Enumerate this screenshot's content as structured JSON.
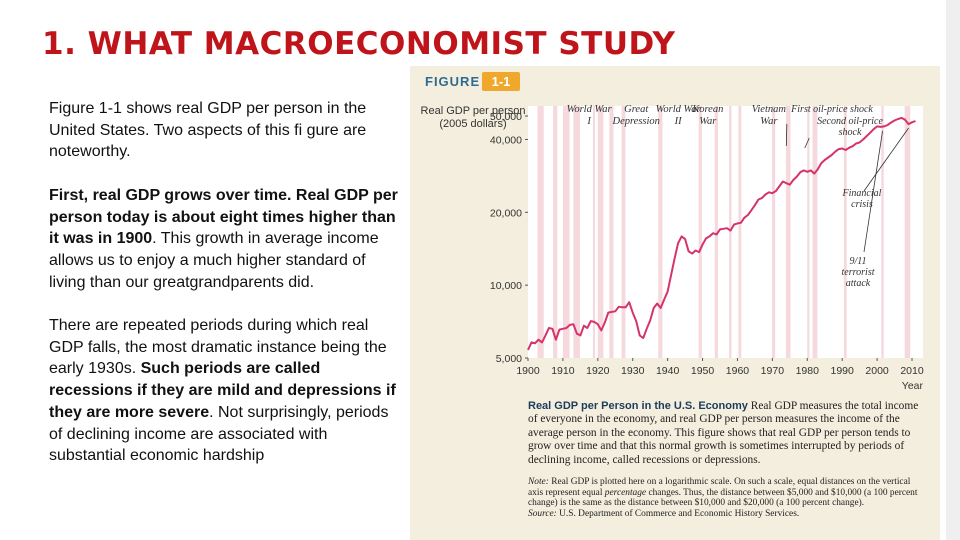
{
  "slide": {
    "title": "1. WHAT MACROECONOMIST STUDY",
    "paragraph1": "Figure 1-1 shows real GDP per person in the United States. Two aspects of this fi gure are noteworthy.",
    "paragraph2_bold": "First, real GDP grows over time. Real GDP per person today is about eight times higher than it was in 1900",
    "paragraph2_rest": ". This growth in average income allows us to enjoy a much higher standard of living than our greatgrandparents did.",
    "paragraph3_lead": "There are repeated periods during which real GDP falls, the most dramatic instance being the early 1930s. ",
    "paragraph3_bold": "Such periods are called recessions if they are mild and depressions if they are more severe",
    "paragraph3_rest": ". Not surprisingly, periods of declining income are associated with substantial economic hardship"
  },
  "figure": {
    "label": "FIGURE",
    "number": "1-1",
    "caption_title": "Real GDP per Person in the U.S. Economy",
    "caption_text": "Real GDP measures the total income of everyone in the economy, and real GDP per person measures the income of the average person in the economy. This figure shows that real GDP per person tends to grow over time and that this normal growth is sometimes interrupted by periods of declining income, called recessions or depressions.",
    "note_label": "Note:",
    "note_text": "Real GDP is plotted here on a logarithmic scale. On such a scale, equal distances on the vertical axis represent equal",
    "note_italic": "percentage",
    "note_text2": "changes. Thus, the distance between $5,000 and $10,000 (a 100 percent change) is the same as the distance between $10,000 and $20,000 (a 100 percent change).",
    "source_label": "Source:",
    "source_text": "U.S. Department of Commerce and Economic History Services."
  },
  "chart_data": {
    "type": "line",
    "ylabel": "Real GDP per person (2005 dollars)",
    "xlabel": "Year",
    "y_scale": "log",
    "ylim": [
      5000,
      55000
    ],
    "xlim": [
      1900,
      2012
    ],
    "y_ticks": [
      5000,
      10000,
      20000,
      40000,
      50000
    ],
    "y_tick_labels": [
      "5,000",
      "10,000",
      "20,000",
      "40,000",
      "50,000"
    ],
    "x_ticks": [
      1900,
      1910,
      1920,
      1930,
      1940,
      1950,
      1960,
      1970,
      1980,
      1990,
      2000,
      2010
    ],
    "x_tick_labels": [
      "1900",
      "1910",
      "1920",
      "1930",
      "1940",
      "1950",
      "1960",
      "1970",
      "1980",
      "1990",
      "2000",
      "2010"
    ],
    "grid": false,
    "line_color": "#d6336c",
    "band_color": "#f5d9dc",
    "series": [
      {
        "x": [
          1900,
          1901,
          1902,
          1903,
          1904,
          1905,
          1906,
          1907,
          1908,
          1909,
          1910,
          1911,
          1912,
          1913,
          1914,
          1915,
          1916,
          1917,
          1918,
          1919,
          1920,
          1921,
          1922,
          1923,
          1924,
          1925,
          1926,
          1927,
          1928,
          1929,
          1930,
          1931,
          1932,
          1933,
          1934,
          1935,
          1936,
          1937,
          1938,
          1939,
          1940,
          1941,
          1942,
          1943,
          1944,
          1945,
          1946,
          1947,
          1948,
          1949,
          1950,
          1951,
          1952,
          1953,
          1954,
          1955,
          1956,
          1957,
          1958,
          1959,
          1960,
          1961,
          1962,
          1963,
          1964,
          1965,
          1966,
          1967,
          1968,
          1969,
          1970,
          1971,
          1972,
          1973,
          1974,
          1975,
          1976,
          1977,
          1978,
          1979,
          1980,
          1981,
          1982,
          1983,
          1984,
          1985,
          1986,
          1987,
          1988,
          1989,
          1990,
          1991,
          1992,
          1993,
          1994,
          1995,
          1996,
          1997,
          1998,
          1999,
          2000,
          2001,
          2002,
          2003,
          2004,
          2005,
          2006,
          2007,
          2008,
          2009,
          2010,
          2011
        ],
        "values": [
          5400,
          5800,
          5750,
          5950,
          5800,
          6200,
          6650,
          6600,
          5950,
          6550,
          6600,
          6650,
          6850,
          6900,
          6300,
          6200,
          6800,
          6650,
          7100,
          7050,
          6900,
          6500,
          7000,
          7700,
          7750,
          7800,
          8150,
          8100,
          8100,
          8500,
          7700,
          7100,
          6200,
          6050,
          6600,
          7150,
          8050,
          8400,
          8050,
          8700,
          9400,
          11000,
          12900,
          14900,
          15900,
          15500,
          13800,
          13500,
          13900,
          13700,
          14700,
          15600,
          15900,
          16400,
          16200,
          17000,
          17100,
          17200,
          16800,
          17800,
          18000,
          18100,
          19000,
          19500,
          20400,
          21400,
          22600,
          22900,
          23700,
          24200,
          24000,
          24500,
          25600,
          26800,
          26400,
          26000,
          27200,
          28100,
          29300,
          29800,
          29400,
          29800,
          28900,
          30100,
          31900,
          32900,
          33700,
          34500,
          35600,
          36500,
          36700,
          36200,
          37000,
          37500,
          38500,
          38900,
          40000,
          41300,
          42600,
          44100,
          45300,
          45100,
          45300,
          45900,
          47000,
          47900,
          48600,
          49100,
          48300,
          46300,
          47100,
          47700
        ]
      }
    ],
    "shaded_periods": [
      {
        "label": "World War I",
        "start": 1917,
        "end": 1918
      },
      {
        "label": "Great Depression",
        "start": 1929,
        "end": 1933
      },
      {
        "label": "World War II",
        "start": 1941,
        "end": 1945
      },
      {
        "label": "Korean War",
        "start": 1950,
        "end": 1953
      },
      {
        "label": "Vietnam War",
        "start": 1965,
        "end": 1973
      }
    ],
    "recession_bands": [
      [
        1902.7,
        1904.5
      ],
      [
        1907.2,
        1908.4
      ],
      [
        1910,
        1911.9
      ],
      [
        1913,
        1914.9
      ],
      [
        1918.6,
        1919.2
      ],
      [
        1920,
        1921.6
      ],
      [
        1923.3,
        1924.5
      ],
      [
        1926.8,
        1927.9
      ],
      [
        1937.3,
        1938.5
      ],
      [
        1948.9,
        1949.8
      ],
      [
        1953.5,
        1954.4
      ],
      [
        1957.6,
        1958.3
      ],
      [
        1960.3,
        1961.1
      ],
      [
        1969.9,
        1970.8
      ],
      [
        1973.9,
        1975.2
      ],
      [
        1980,
        1980.6
      ],
      [
        1981.5,
        1982.9
      ],
      [
        1990.5,
        1991.3
      ],
      [
        2001.2,
        2001.9
      ],
      [
        2007.9,
        2009.5
      ]
    ],
    "annotations": [
      {
        "text": "First oil-price shock",
        "x": 1973
      },
      {
        "text": "Second oil-price shock",
        "x": 1979
      },
      {
        "text": "Financial crisis",
        "x": 2008
      },
      {
        "text": "9/11 terrorist attack",
        "x": 2001
      }
    ]
  }
}
